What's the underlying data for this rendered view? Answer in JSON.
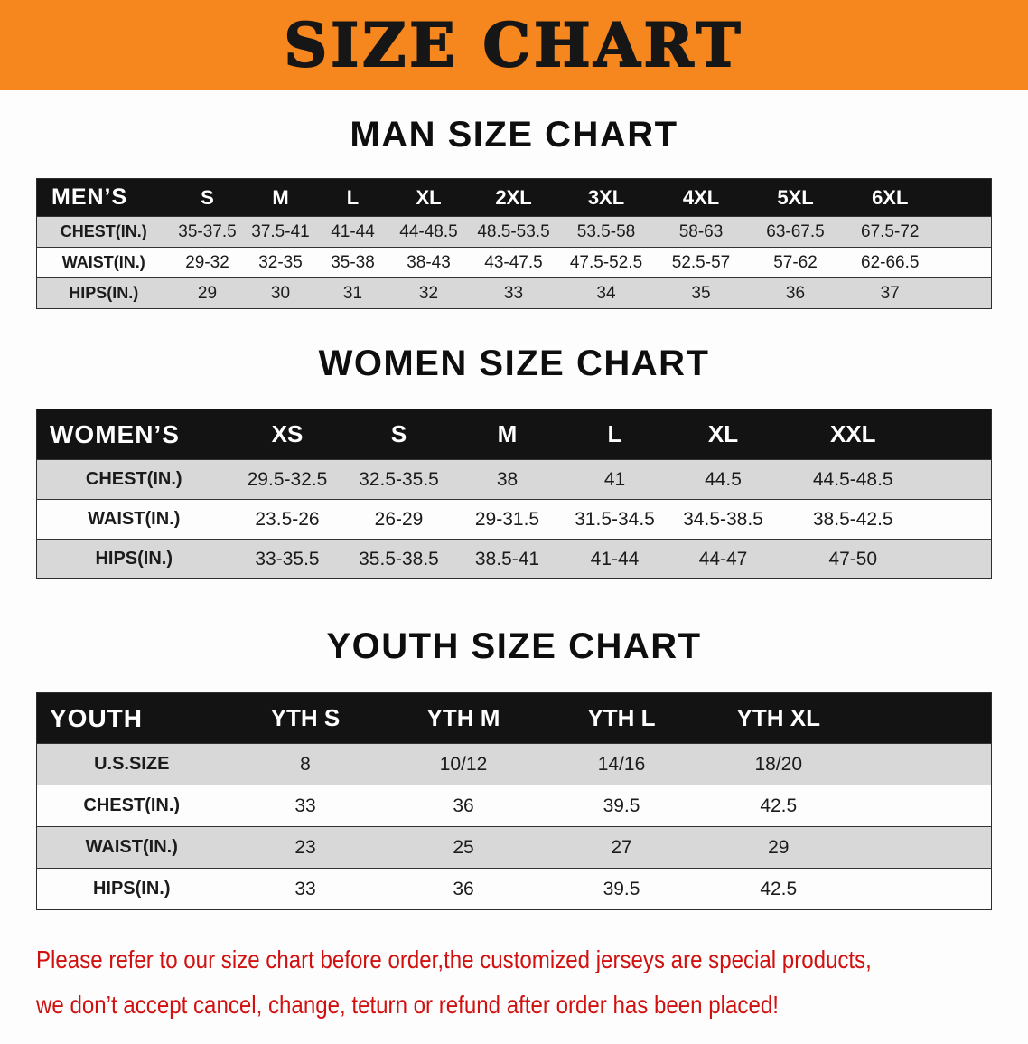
{
  "banner": {
    "title": "SIZE CHART",
    "bg_color": "#f6861e",
    "text_color": "#161616"
  },
  "colors": {
    "table_header_bg": "#131313",
    "table_header_text": "#ffffff",
    "row_stripe": "#d8d8d8",
    "disclaimer_red": "#d01110"
  },
  "tables": {
    "men": {
      "heading": "MAN SIZE CHART",
      "header": [
        "MEN’S",
        "S",
        "M",
        "L",
        "XL",
        "2XL",
        "3XL",
        "4XL",
        "5XL",
        "6XL"
      ],
      "rows": [
        [
          "CHEST(IN.)",
          "35-37.5",
          "37.5-41",
          "41-44",
          "44-48.5",
          "48.5-53.5",
          "53.5-58",
          "58-63",
          "63-67.5",
          "67.5-72"
        ],
        [
          "WAIST(IN.)",
          "29-32",
          "32-35",
          "35-38",
          "38-43",
          "43-47.5",
          "47.5-52.5",
          "52.5-57",
          "57-62",
          "62-66.5"
        ],
        [
          "HIPS(IN.)",
          "29",
          "30",
          "31",
          "32",
          "33",
          "34",
          "35",
          "36",
          "37"
        ]
      ]
    },
    "women": {
      "heading": "WOMEN SIZE CHART",
      "header": [
        "WOMEN’S",
        "XS",
        "S",
        "M",
        "L",
        "XL",
        "XXL"
      ],
      "rows": [
        [
          "CHEST(IN.)",
          "29.5-32.5",
          "32.5-35.5",
          "38",
          "41",
          "44.5",
          "44.5-48.5"
        ],
        [
          "WAIST(IN.)",
          "23.5-26",
          "26-29",
          "29-31.5",
          "31.5-34.5",
          "34.5-38.5",
          "38.5-42.5"
        ],
        [
          "HIPS(IN.)",
          "33-35.5",
          "35.5-38.5",
          "38.5-41",
          "41-44",
          "44-47",
          "47-50"
        ]
      ]
    },
    "youth": {
      "heading": "YOUTH SIZE CHART",
      "header": [
        "YOUTH",
        "YTH S",
        "YTH M",
        "YTH L",
        "YTH XL"
      ],
      "rows": [
        [
          "U.S.SIZE",
          "8",
          "10/12",
          "14/16",
          "18/20"
        ],
        [
          "CHEST(IN.)",
          "33",
          "36",
          "39.5",
          "42.5"
        ],
        [
          "WAIST(IN.)",
          "23",
          "25",
          "27",
          "29"
        ],
        [
          "HIPS(IN.)",
          "33",
          "36",
          "39.5",
          "42.5"
        ]
      ]
    }
  },
  "disclaimer": {
    "line1": "Please refer to our size chart before order,the customized jerseys are special products,",
    "line2": "we don’t accept cancel, change, teturn or refund after order has been placed!"
  }
}
